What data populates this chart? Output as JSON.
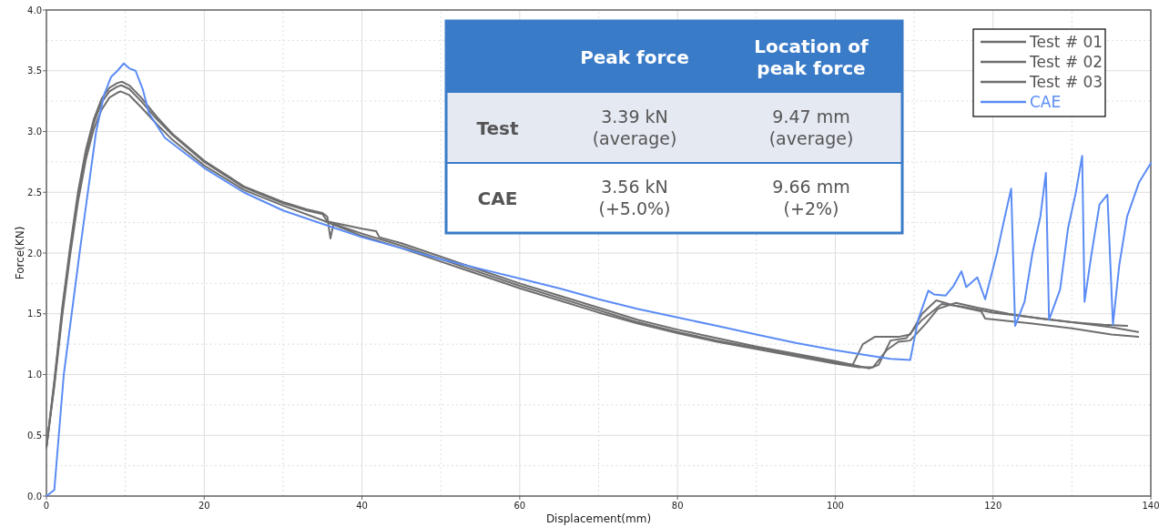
{
  "chart_data": {
    "type": "line",
    "xlabel": "Displacement(mm)",
    "ylabel": "Force(KN)",
    "xlim": [
      0,
      140
    ],
    "xticks": [
      0,
      20,
      40,
      60,
      80,
      100,
      120,
      140
    ],
    "ylim": [
      0,
      4
    ],
    "yticks": [
      {
        "value": 0,
        "label": "0.0"
      },
      {
        "value": 0.5,
        "label": "0.5"
      },
      {
        "value": 1,
        "label": "1.0"
      },
      {
        "value": 1.5,
        "label": "1.5"
      },
      {
        "value": 2,
        "label": "2.0"
      },
      {
        "value": 2.5,
        "label": "2.5"
      },
      {
        "value": 3,
        "label": "3.0"
      },
      {
        "value": 3.5,
        "label": "3.5"
      },
      {
        "value": 4,
        "label": "4.0"
      }
    ],
    "grid": true,
    "legend": "top right",
    "line_style": "solid",
    "marker": "none",
    "annotations": [
      "Peak force",
      "Location of\npeak force",
      "Test",
      "3.39 kN\n(average)",
      "9.47 mm\n(average)",
      "CAE",
      "3.56 kN\n(+5.0%)",
      "9.66 mm\n(+2%)"
    ],
    "series": [
      {
        "name": "Test # 01",
        "color": "#6e6e6e",
        "x": [
          0,
          1,
          2,
          3,
          4,
          5,
          6,
          7,
          8,
          9,
          9.6,
          10.5,
          12,
          14,
          16,
          20,
          25,
          30,
          33,
          35,
          35.6,
          36,
          36.4,
          40,
          45,
          50,
          55,
          60,
          65,
          70,
          75,
          80,
          85,
          90,
          95,
          100,
          102.2,
          103.5,
          105,
          108,
          109.5,
          111,
          112.8,
          115,
          118.5,
          119,
          125,
          130,
          135,
          138.4
        ],
        "values": [
          0.4,
          0.95,
          1.55,
          2.05,
          2.5,
          2.85,
          3.1,
          3.27,
          3.36,
          3.4,
          3.41,
          3.38,
          3.28,
          3.12,
          2.98,
          2.76,
          2.55,
          2.42,
          2.36,
          2.33,
          2.3,
          2.12,
          2.24,
          2.16,
          2.06,
          1.95,
          1.84,
          1.73,
          1.63,
          1.53,
          1.43,
          1.35,
          1.28,
          1.22,
          1.16,
          1.1,
          1.08,
          1.25,
          1.31,
          1.31,
          1.33,
          1.5,
          1.61,
          1.57,
          1.52,
          1.46,
          1.42,
          1.38,
          1.33,
          1.31
        ]
      },
      {
        "name": "Test # 02",
        "color": "#6e6e6e",
        "x": [
          0,
          1,
          2,
          3,
          4,
          5,
          6,
          7,
          8,
          9,
          9.5,
          10.5,
          12,
          14,
          16,
          20,
          25,
          30,
          33,
          35,
          35.6,
          40,
          41.8,
          42.2,
          45,
          50,
          55,
          60,
          65,
          70,
          75,
          80,
          85,
          90,
          95,
          100,
          104.3,
          105.5,
          107,
          109,
          111,
          113.5,
          116,
          120,
          125,
          130,
          135,
          138.4
        ],
        "values": [
          0.4,
          0.93,
          1.52,
          2.02,
          2.47,
          2.82,
          3.07,
          3.24,
          3.33,
          3.37,
          3.38,
          3.35,
          3.25,
          3.1,
          2.97,
          2.75,
          2.54,
          2.41,
          2.35,
          2.32,
          2.26,
          2.2,
          2.18,
          2.13,
          2.08,
          1.97,
          1.86,
          1.75,
          1.65,
          1.55,
          1.45,
          1.37,
          1.3,
          1.23,
          1.17,
          1.11,
          1.05,
          1.08,
          1.28,
          1.3,
          1.45,
          1.58,
          1.56,
          1.51,
          1.47,
          1.43,
          1.39,
          1.35
        ]
      },
      {
        "name": "Test # 03",
        "color": "#6e6e6e",
        "x": [
          0,
          1,
          2,
          3,
          4,
          5,
          6,
          7,
          8,
          9,
          9.4,
          10.5,
          12,
          14,
          16,
          20,
          25,
          30,
          35,
          40,
          45,
          50,
          55,
          60,
          65,
          70,
          75,
          80,
          85,
          90,
          95,
          100,
          103,
          104.8,
          106.5,
          108,
          109.5,
          111.5,
          113,
          115.3,
          118,
          122,
          126,
          130,
          134,
          137
        ],
        "values": [
          0.4,
          0.9,
          1.48,
          1.98,
          2.42,
          2.77,
          3.02,
          3.18,
          3.28,
          3.32,
          3.33,
          3.3,
          3.2,
          3.06,
          2.93,
          2.72,
          2.52,
          2.39,
          2.27,
          2.14,
          2.04,
          1.93,
          1.82,
          1.71,
          1.61,
          1.51,
          1.42,
          1.34,
          1.27,
          1.21,
          1.15,
          1.09,
          1.06,
          1.06,
          1.2,
          1.27,
          1.28,
          1.42,
          1.54,
          1.59,
          1.55,
          1.5,
          1.46,
          1.43,
          1.41,
          1.4
        ]
      },
      {
        "name": "CAE",
        "color": "#5b8cf5",
        "x": [
          0,
          1,
          2.2,
          4.2,
          6.3,
          7.3,
          8.2,
          9,
          9.8,
          10.5,
          11.3,
          12.2,
          13,
          15,
          20,
          25,
          30,
          35,
          40,
          45,
          50,
          55,
          60,
          65,
          70,
          75,
          80,
          85,
          90,
          95,
          100,
          104,
          107,
          109.5,
          110.5,
          111.8,
          112.5,
          114,
          115,
          116,
          116.6,
          118,
          119,
          120.5,
          121.5,
          122.3,
          122.8,
          124,
          125,
          126,
          126.7,
          127.1,
          128.5,
          129.5,
          130.5,
          131.3,
          131.6,
          132.5,
          133.5,
          134.5,
          135.2,
          136,
          137,
          138.5,
          140
        ],
        "values": [
          0,
          0.05,
          1.0,
          2.0,
          3.0,
          3.3,
          3.45,
          3.5,
          3.56,
          3.52,
          3.5,
          3.35,
          3.15,
          2.95,
          2.7,
          2.5,
          2.35,
          2.24,
          2.13,
          2.04,
          1.95,
          1.87,
          1.79,
          1.71,
          1.62,
          1.54,
          1.47,
          1.4,
          1.33,
          1.26,
          1.2,
          1.16,
          1.13,
          1.12,
          1.45,
          1.69,
          1.66,
          1.65,
          1.73,
          1.85,
          1.72,
          1.8,
          1.62,
          2.0,
          2.3,
          2.53,
          1.4,
          1.6,
          2.0,
          2.3,
          2.66,
          1.45,
          1.7,
          2.2,
          2.5,
          2.8,
          1.6,
          2.0,
          2.4,
          2.48,
          1.41,
          1.9,
          2.3,
          2.58,
          2.74
        ]
      }
    ]
  }
}
